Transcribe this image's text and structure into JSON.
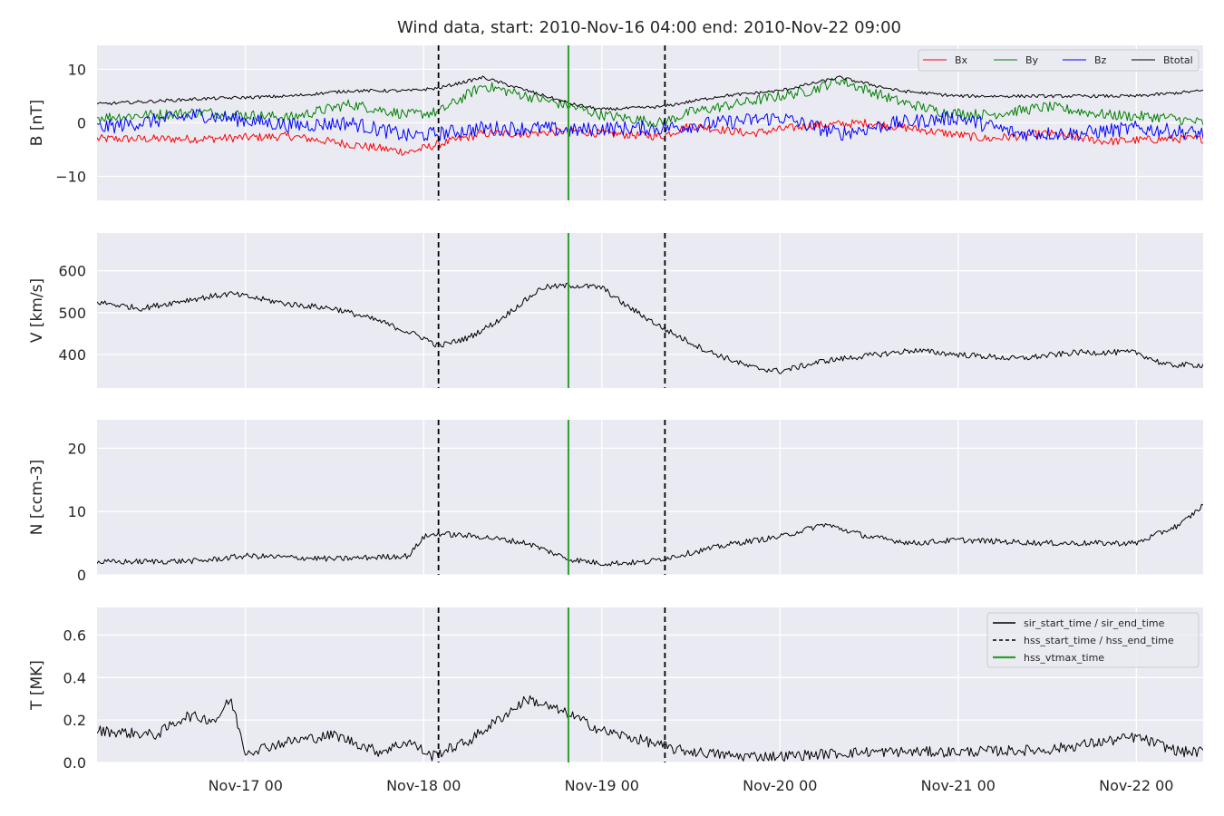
{
  "chart_data": {
    "type": "line",
    "title": "Wind data, start: 2010-Nov-16 04:00  end: 2010-Nov-22 09:00",
    "x_range": [
      "2010-11-16T04:00",
      "2010-11-22T09:00"
    ],
    "x_ticks": [
      {
        "t": "2010-11-17T00:00",
        "label": "Nov-17 00"
      },
      {
        "t": "2010-11-18T00:00",
        "label": "Nov-18 00"
      },
      {
        "t": "2010-11-19T00:00",
        "label": "Nov-19 00"
      },
      {
        "t": "2010-11-20T00:00",
        "label": "Nov-20 00"
      },
      {
        "t": "2010-11-21T00:00",
        "label": "Nov-21 00"
      },
      {
        "t": "2010-11-22T00:00",
        "label": "Nov-22 00"
      }
    ],
    "event_lines": [
      {
        "name": "hss_start_time / hss_end_time",
        "t": "2010-11-18T02:00",
        "style": "dashed",
        "color": "#000000"
      },
      {
        "name": "hss_vtmax_time",
        "t": "2010-11-18T19:30",
        "style": "solid",
        "color": "#2ca02c"
      },
      {
        "name": "hss_start_time / hss_end_time",
        "t": "2010-11-19T08:30",
        "style": "dashed",
        "color": "#000000"
      }
    ],
    "panels": [
      {
        "id": "B",
        "ylabel": "B [nT]",
        "ylim": [
          -14.5,
          14.5
        ],
        "yticks": [
          {
            "v": -10,
            "label": "−10"
          },
          {
            "v": 0,
            "label": "0"
          },
          {
            "v": 10,
            "label": "10"
          }
        ],
        "legend": {
          "position": "top-right",
          "entries": [
            "Bx",
            "By",
            "Bz",
            "Btotal"
          ]
        },
        "series": [
          {
            "name": "Bx",
            "color": "#ff0000",
            "noise": 0.8,
            "points": [
              [
                "2010-11-16T04:00",
                -3
              ],
              [
                "2010-11-16T18:00",
                -3
              ],
              [
                "2010-11-17T06:00",
                -2.5
              ],
              [
                "2010-11-17T14:00",
                -4
              ],
              [
                "2010-11-17T22:00",
                -5.5
              ],
              [
                "2010-11-18T02:00",
                -4
              ],
              [
                "2010-11-18T08:00",
                -2
              ],
              [
                "2010-11-18T14:00",
                -2
              ],
              [
                "2010-11-18T20:00",
                -1.5
              ],
              [
                "2010-11-19T00:00",
                -2
              ],
              [
                "2010-11-19T08:00",
                -2.5
              ],
              [
                "2010-11-19T12:00",
                -0.5
              ],
              [
                "2010-11-19T20:00",
                -2
              ],
              [
                "2010-11-20T04:00",
                -0.5
              ],
              [
                "2010-11-20T12:00",
                0
              ],
              [
                "2010-11-20T20:00",
                -1.5
              ],
              [
                "2010-11-21T04:00",
                -3
              ],
              [
                "2010-11-21T12:00",
                -2
              ],
              [
                "2010-11-21T20:00",
                -3.5
              ],
              [
                "2010-11-22T04:00",
                -3
              ],
              [
                "2010-11-22T09:00",
                -3
              ]
            ]
          },
          {
            "name": "By",
            "color": "#008000",
            "noise": 1.0,
            "points": [
              [
                "2010-11-16T04:00",
                1
              ],
              [
                "2010-11-16T18:00",
                2
              ],
              [
                "2010-11-17T06:00",
                1
              ],
              [
                "2010-11-17T14:00",
                3.5
              ],
              [
                "2010-11-17T22:00",
                1.5
              ],
              [
                "2010-11-18T02:00",
                2
              ],
              [
                "2010-11-18T08:00",
                7
              ],
              [
                "2010-11-18T14:00",
                5
              ],
              [
                "2010-11-18T20:00",
                3
              ],
              [
                "2010-11-19T00:00",
                1.5
              ],
              [
                "2010-11-19T08:00",
                0
              ],
              [
                "2010-11-19T12:00",
                2
              ],
              [
                "2010-11-19T20:00",
                4
              ],
              [
                "2010-11-20T04:00",
                6
              ],
              [
                "2010-11-20T08:00",
                8
              ],
              [
                "2010-11-20T16:00",
                4
              ],
              [
                "2010-11-20T22:00",
                2
              ],
              [
                "2010-11-21T04:00",
                1.5
              ],
              [
                "2010-11-21T12:00",
                3
              ],
              [
                "2010-11-21T20:00",
                1.5
              ],
              [
                "2010-11-22T04:00",
                1
              ],
              [
                "2010-11-22T09:00",
                0
              ]
            ]
          },
          {
            "name": "Bz",
            "color": "#0000ff",
            "noise": 1.4,
            "points": [
              [
                "2010-11-16T04:00",
                -1
              ],
              [
                "2010-11-16T18:00",
                1.5
              ],
              [
                "2010-11-17T06:00",
                -0.5
              ],
              [
                "2010-11-17T14:00",
                0
              ],
              [
                "2010-11-17T22:00",
                -2.5
              ],
              [
                "2010-11-18T02:00",
                -2
              ],
              [
                "2010-11-18T08:00",
                -1
              ],
              [
                "2010-11-18T16:00",
                -1
              ],
              [
                "2010-11-18T20:00",
                -1.5
              ],
              [
                "2010-11-19T00:00",
                -1
              ],
              [
                "2010-11-19T08:00",
                -1
              ],
              [
                "2010-11-19T16:00",
                0
              ],
              [
                "2010-11-20T00:00",
                1
              ],
              [
                "2010-11-20T08:00",
                -2
              ],
              [
                "2010-11-20T16:00",
                0
              ],
              [
                "2010-11-21T00:00",
                1
              ],
              [
                "2010-11-21T08:00",
                -2
              ],
              [
                "2010-11-21T16:00",
                -2
              ],
              [
                "2010-11-22T00:00",
                -1
              ],
              [
                "2010-11-22T09:00",
                -2
              ]
            ]
          },
          {
            "name": "Btotal",
            "color": "#000000",
            "noise": 0.3,
            "points": [
              [
                "2010-11-16T04:00",
                3.5
              ],
              [
                "2010-11-16T18:00",
                4.5
              ],
              [
                "2010-11-17T06:00",
                5
              ],
              [
                "2010-11-17T14:00",
                6
              ],
              [
                "2010-11-17T22:00",
                6
              ],
              [
                "2010-11-18T02:00",
                6.5
              ],
              [
                "2010-11-18T08:00",
                8.5
              ],
              [
                "2010-11-18T14:00",
                6
              ],
              [
                "2010-11-18T20:00",
                3.5
              ],
              [
                "2010-11-19T00:00",
                2.5
              ],
              [
                "2010-11-19T08:00",
                3
              ],
              [
                "2010-11-19T16:00",
                5
              ],
              [
                "2010-11-20T00:00",
                6
              ],
              [
                "2010-11-20T08:00",
                8.5
              ],
              [
                "2010-11-20T16:00",
                6
              ],
              [
                "2010-11-21T00:00",
                5
              ],
              [
                "2010-11-21T08:00",
                5
              ],
              [
                "2010-11-21T16:00",
                5
              ],
              [
                "2010-11-22T00:00",
                5
              ],
              [
                "2010-11-22T09:00",
                6
              ]
            ]
          }
        ]
      },
      {
        "id": "V",
        "ylabel": "V [km/s]",
        "ylim": [
          320,
          690
        ],
        "yticks": [
          {
            "v": 400,
            "label": "400"
          },
          {
            "v": 500,
            "label": "500"
          },
          {
            "v": 600,
            "label": "600"
          }
        ],
        "series": [
          {
            "name": "V",
            "color": "#000000",
            "noise": 7,
            "points": [
              [
                "2010-11-16T04:00",
                525
              ],
              [
                "2010-11-16T10:00",
                510
              ],
              [
                "2010-11-16T16:00",
                530
              ],
              [
                "2010-11-16T22:00",
                545
              ],
              [
                "2010-11-17T06:00",
                520
              ],
              [
                "2010-11-17T12:00",
                510
              ],
              [
                "2010-11-17T18:00",
                480
              ],
              [
                "2010-11-18T00:00",
                440
              ],
              [
                "2010-11-18T02:00",
                420
              ],
              [
                "2010-11-18T06:00",
                440
              ],
              [
                "2010-11-18T10:00",
                480
              ],
              [
                "2010-11-18T16:00",
                560
              ],
              [
                "2010-11-18T20:00",
                565
              ],
              [
                "2010-11-19T00:00",
                560
              ],
              [
                "2010-11-19T03:00",
                520
              ],
              [
                "2010-11-19T08:30",
                460
              ],
              [
                "2010-11-19T14:00",
                410
              ],
              [
                "2010-11-19T20:00",
                370
              ],
              [
                "2010-11-20T00:00",
                360
              ],
              [
                "2010-11-20T06:00",
                385
              ],
              [
                "2010-11-20T18:00",
                410
              ],
              [
                "2010-11-21T00:00",
                400
              ],
              [
                "2010-11-21T08:00",
                390
              ],
              [
                "2010-11-21T16:00",
                405
              ],
              [
                "2010-11-22T00:00",
                405
              ],
              [
                "2010-11-22T04:00",
                375
              ],
              [
                "2010-11-22T09:00",
                375
              ]
            ]
          }
        ]
      },
      {
        "id": "N",
        "ylabel": "N [ccm-3]",
        "ylim": [
          0,
          24.5
        ],
        "yticks": [
          {
            "v": 0,
            "label": "0"
          },
          {
            "v": 10,
            "label": "10"
          },
          {
            "v": 20,
            "label": "20"
          }
        ],
        "series": [
          {
            "name": "N",
            "color": "#000000",
            "noise": 0.45,
            "points": [
              [
                "2010-11-16T04:00",
                2
              ],
              [
                "2010-11-16T18:00",
                2.2
              ],
              [
                "2010-11-17T00:00",
                3
              ],
              [
                "2010-11-17T12:00",
                2.5
              ],
              [
                "2010-11-17T22:00",
                3
              ],
              [
                "2010-11-18T00:00",
                6
              ],
              [
                "2010-11-18T02:00",
                6.5
              ],
              [
                "2010-11-18T08:00",
                6
              ],
              [
                "2010-11-18T14:00",
                5
              ],
              [
                "2010-11-18T19:30",
                2.5
              ],
              [
                "2010-11-19T00:00",
                1.8
              ],
              [
                "2010-11-19T06:00",
                2
              ],
              [
                "2010-11-19T12:00",
                3.5
              ],
              [
                "2010-11-19T18:00",
                5
              ],
              [
                "2010-11-20T00:00",
                6
              ],
              [
                "2010-11-20T06:00",
                8
              ],
              [
                "2010-11-20T12:00",
                6
              ],
              [
                "2010-11-20T18:00",
                5
              ],
              [
                "2010-11-21T00:00",
                5.5
              ],
              [
                "2010-11-21T12:00",
                5
              ],
              [
                "2010-11-22T00:00",
                5
              ],
              [
                "2010-11-22T06:00",
                8
              ],
              [
                "2010-11-22T09:00",
                11
              ]
            ]
          }
        ]
      },
      {
        "id": "T",
        "ylabel": "T [MK]",
        "ylim": [
          0,
          0.73
        ],
        "yticks": [
          {
            "v": 0,
            "label": "0.0"
          },
          {
            "v": 0.2,
            "label": "0.2"
          },
          {
            "v": 0.4,
            "label": "0.4"
          },
          {
            "v": 0.6,
            "label": "0.6"
          }
        ],
        "legend": {
          "position": "top-right",
          "entries": [
            "sir_start_time / sir_end_time",
            "hss_start_time / hss_end_time",
            "hss_vtmax_time"
          ]
        },
        "series": [
          {
            "name": "T",
            "color": "#000000",
            "noise": 0.025,
            "points": [
              [
                "2010-11-16T04:00",
                0.15
              ],
              [
                "2010-11-16T12:00",
                0.13
              ],
              [
                "2010-11-16T16:00",
                0.22
              ],
              [
                "2010-11-16T20:00",
                0.2
              ],
              [
                "2010-11-16T22:00",
                0.3
              ],
              [
                "2010-11-17T00:00",
                0.05
              ],
              [
                "2010-11-17T06:00",
                0.1
              ],
              [
                "2010-11-17T12:00",
                0.13
              ],
              [
                "2010-11-17T18:00",
                0.05
              ],
              [
                "2010-11-17T22:00",
                0.1
              ],
              [
                "2010-11-18T01:00",
                0.03
              ],
              [
                "2010-11-18T06:00",
                0.1
              ],
              [
                "2010-11-18T10:00",
                0.2
              ],
              [
                "2010-11-18T14:00",
                0.3
              ],
              [
                "2010-11-18T20:00",
                0.22
              ],
              [
                "2010-11-19T00:00",
                0.15
              ],
              [
                "2010-11-19T06:00",
                0.1
              ],
              [
                "2010-11-19T10:00",
                0.06
              ],
              [
                "2010-11-19T18:00",
                0.03
              ],
              [
                "2010-11-20T00:00",
                0.03
              ],
              [
                "2010-11-20T12:00",
                0.05
              ],
              [
                "2010-11-21T00:00",
                0.05
              ],
              [
                "2010-11-21T12:00",
                0.06
              ],
              [
                "2010-11-22T00:00",
                0.12
              ],
              [
                "2010-11-22T06:00",
                0.05
              ],
              [
                "2010-11-22T09:00",
                0.05
              ]
            ]
          }
        ]
      }
    ]
  }
}
